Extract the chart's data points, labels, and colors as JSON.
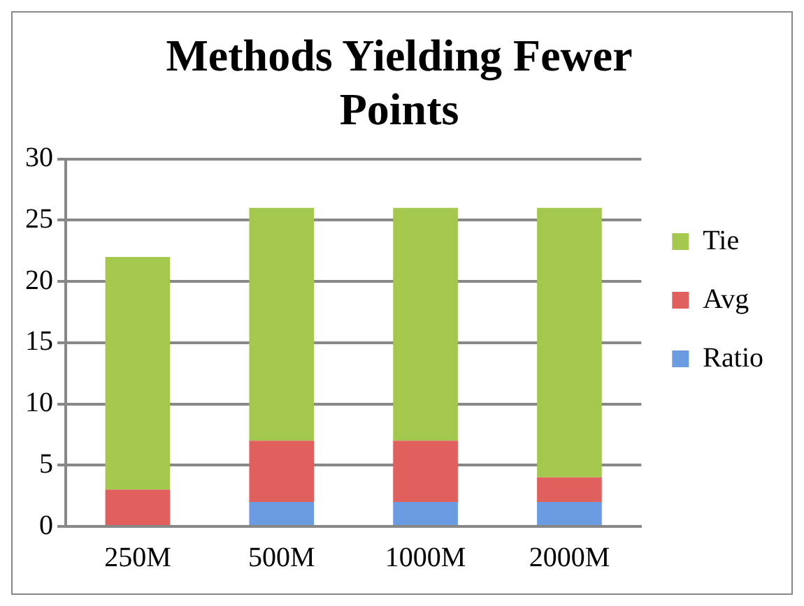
{
  "chart_data": {
    "type": "bar",
    "title": "Methods Yielding Fewer Points",
    "categories": [
      "250M",
      "500M",
      "1000M",
      "2000M"
    ],
    "stacked": true,
    "series": [
      {
        "name": "Ratio",
        "color": "#6b9be0",
        "values": [
          0,
          2,
          2,
          2
        ]
      },
      {
        "name": "Avg",
        "color": "#e0605e",
        "values": [
          3,
          5,
          5,
          2
        ]
      },
      {
        "name": "Tie",
        "color": "#a4c84e",
        "values": [
          19,
          19,
          19,
          22
        ]
      }
    ],
    "ylim": [
      0,
      30
    ],
    "yticks": [
      0,
      5,
      10,
      15,
      20,
      25,
      30
    ],
    "grid": "y",
    "legend": "right"
  }
}
